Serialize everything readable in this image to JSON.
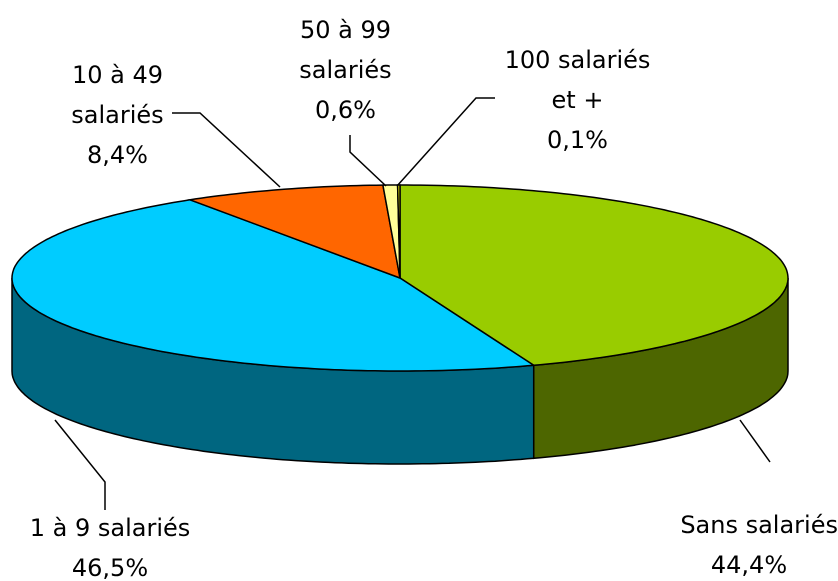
{
  "chart_data": {
    "type": "pie3d",
    "categories": [
      "Sans salariés",
      "1 à 9 salariés",
      "10 à 49 salariés",
      "50 à 99 salariés",
      "100 salariés et +"
    ],
    "values": [
      44.4,
      46.5,
      8.4,
      0.6,
      0.1
    ],
    "value_labels": [
      "44,4%",
      "46,5%",
      "8,4%",
      "0,6%",
      "0,1%"
    ],
    "colors": [
      "#99cc00",
      "#00ccff",
      "#ff6600",
      "#ffff99",
      "#ffff00"
    ],
    "side_colors": [
      "#4d6600",
      "#006680",
      "#803300",
      "#808040",
      "#808000"
    ]
  }
}
